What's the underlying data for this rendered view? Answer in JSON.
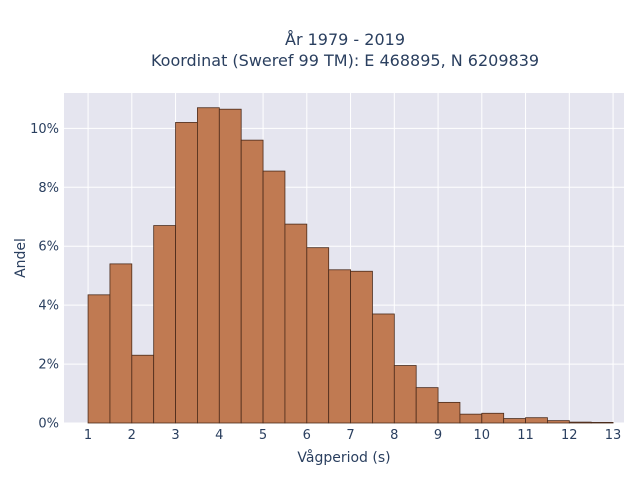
{
  "chart_data": {
    "type": "bar",
    "title": "År 1979 - 2019",
    "subtitle": "Koordinat (Sweref 99 TM): E 468895, N 6209839",
    "xlabel": "Vågperiod (s)",
    "ylabel": "Andel",
    "bin_width": 0.5,
    "bins_start": [
      1,
      1.5,
      2,
      2.5,
      3,
      3.5,
      4,
      4.5,
      5,
      5.5,
      6,
      6.5,
      7,
      7.5,
      8,
      8.5,
      9,
      9.5,
      10,
      10.5,
      11,
      11.5,
      12,
      12.5
    ],
    "values": [
      4.35,
      5.4,
      2.3,
      6.7,
      10.2,
      10.7,
      10.65,
      9.6,
      8.55,
      6.75,
      5.95,
      5.2,
      5.15,
      3.7,
      1.95,
      1.2,
      0.7,
      0.3,
      0.33,
      0.15,
      0.18,
      0.08,
      0.03,
      0.02
    ],
    "x_ticks": [
      1,
      2,
      3,
      4,
      5,
      6,
      7,
      8,
      9,
      10,
      11,
      12,
      13
    ],
    "y_ticks": [
      "0%",
      "2%",
      "4%",
      "6%",
      "8%",
      "10%"
    ],
    "y_tick_values": [
      0,
      2,
      4,
      6,
      8,
      10
    ],
    "xlim": [
      0.45,
      13.25
    ],
    "ylim": [
      0,
      11.2
    ],
    "grid": true,
    "colors": {
      "bar_fill": "#c07a52",
      "bar_stroke": "#4a2a1a",
      "plot_bg": "#e5e5ef",
      "grid": "#ffffff",
      "text": "#2a3f5f"
    }
  }
}
